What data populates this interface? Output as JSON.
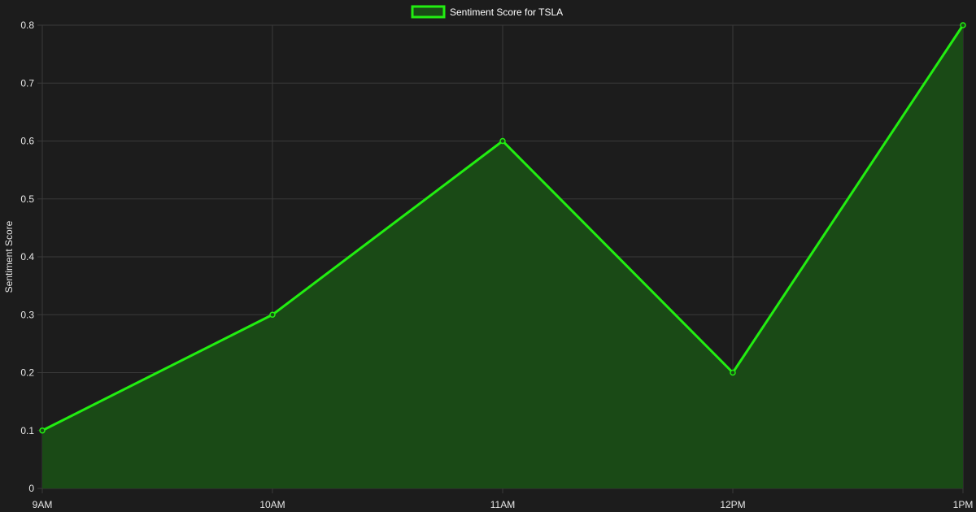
{
  "chart_data": {
    "type": "area",
    "title": "",
    "legend": {
      "label": "Sentiment Score for TSLA",
      "position": "top-center"
    },
    "x": [
      "9AM",
      "10AM",
      "11AM",
      "12PM",
      "1PM"
    ],
    "series": [
      {
        "name": "Sentiment Score for TSLA",
        "values": [
          0.1,
          0.3,
          0.6,
          0.2,
          0.8
        ],
        "color": "#22ee11",
        "fill_color": "#1a4a16"
      }
    ],
    "xlabel": "",
    "ylabel": "Sentiment Score",
    "ylim": [
      0,
      0.8
    ],
    "yticks": [
      0,
      0.1,
      0.2,
      0.3,
      0.4,
      0.5,
      0.6,
      0.7,
      0.8
    ],
    "grid": true
  },
  "colors": {
    "background": "#1c1c1c",
    "grid": "#3a3a3a",
    "text": "#e6e6e6"
  }
}
